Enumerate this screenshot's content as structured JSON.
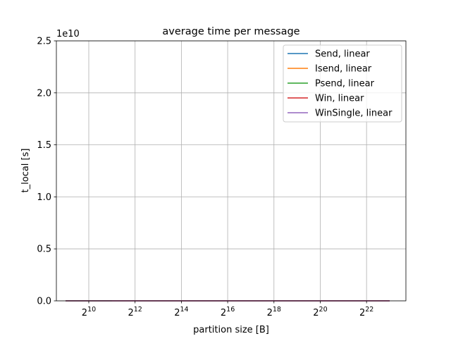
{
  "chart_data": {
    "type": "line",
    "title": "average time per message",
    "xlabel": "partition size [B]",
    "ylabel": "t_local [s]",
    "y_offset_label": "1e10",
    "x_scale": "log2",
    "xlim_exp": [
      8.6,
      23.7
    ],
    "ylim": [
      0,
      25000000000
    ],
    "x_ticks": [
      {
        "exp": 10,
        "base": "2",
        "sup": "10"
      },
      {
        "exp": 12,
        "base": "2",
        "sup": "12"
      },
      {
        "exp": 14,
        "base": "2",
        "sup": "14"
      },
      {
        "exp": 16,
        "base": "2",
        "sup": "16"
      },
      {
        "exp": 18,
        "base": "2",
        "sup": "18"
      },
      {
        "exp": 20,
        "base": "2",
        "sup": "20"
      },
      {
        "exp": 22,
        "base": "2",
        "sup": "22"
      }
    ],
    "y_ticks": [
      {
        "value": 0,
        "label": "0.0"
      },
      {
        "value": 5000000000,
        "label": "0.5"
      },
      {
        "value": 10000000000,
        "label": "1.0"
      },
      {
        "value": 15000000000,
        "label": "1.5"
      },
      {
        "value": 20000000000,
        "label": "2.0"
      },
      {
        "value": 25000000000,
        "label": "2.5"
      }
    ],
    "grid": true,
    "legend_position": "top-right",
    "series": [
      {
        "name": "Send, linear",
        "color": "#1f77b4",
        "x_exp": [
          9,
          10,
          11,
          12,
          13,
          14,
          15,
          16,
          17,
          18,
          19,
          20,
          21,
          22,
          23
        ],
        "values": [
          0,
          0,
          0,
          0,
          0,
          0,
          0,
          0,
          0,
          0,
          0,
          0,
          0,
          0,
          0
        ]
      },
      {
        "name": "Isend, linear",
        "color": "#ff7f0e",
        "x_exp": [
          9,
          10,
          11,
          12,
          13,
          14,
          15,
          16,
          17,
          18,
          19,
          20,
          21,
          22,
          23
        ],
        "values": [
          0,
          0,
          0,
          0,
          0,
          0,
          0,
          0,
          0,
          0,
          0,
          0,
          0,
          0,
          0
        ]
      },
      {
        "name": "Psend, linear",
        "color": "#2ca02c",
        "x_exp": [
          9,
          10,
          11
        ],
        "values": [
          0,
          0,
          0
        ]
      },
      {
        "name": "Win, linear",
        "color": "#d62728",
        "x_exp": [
          9,
          10,
          11,
          12,
          13,
          14,
          15,
          16,
          17,
          18,
          19,
          20,
          21,
          22,
          23
        ],
        "values": [
          0,
          0,
          0,
          0,
          0,
          0,
          0,
          0,
          0,
          0,
          0,
          0,
          0,
          0,
          0
        ]
      },
      {
        "name": "WinSingle, linear",
        "color": "#9467bd",
        "x_exp": [
          9,
          10,
          11,
          12,
          13,
          14,
          15,
          16,
          17,
          18,
          19,
          20,
          21,
          22,
          23
        ],
        "values": [
          0,
          0,
          0,
          0,
          0,
          0,
          0,
          0,
          0,
          0,
          0,
          0,
          0,
          0,
          0
        ]
      }
    ]
  }
}
